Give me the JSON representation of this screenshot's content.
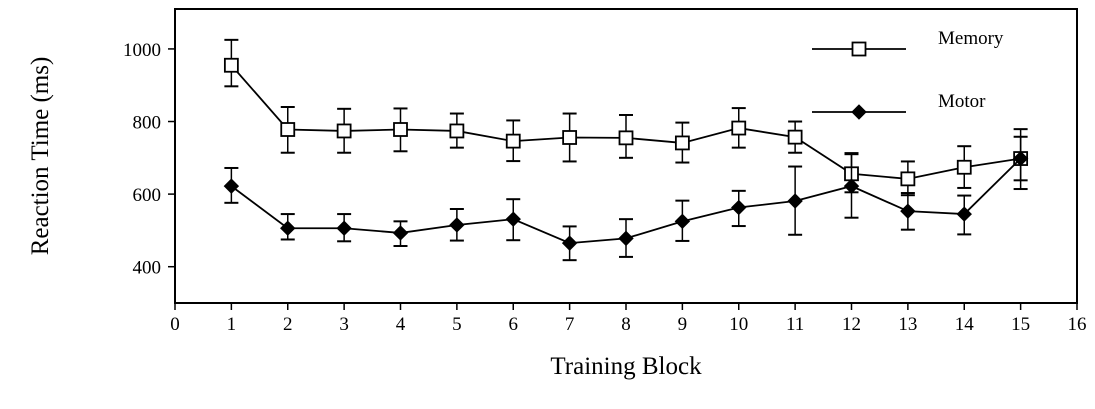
{
  "chart_data": {
    "type": "line",
    "title": "",
    "xlabel": "Training Block",
    "ylabel": "Reaction Time (ms)",
    "xlim": [
      0,
      16
    ],
    "ylim": [
      300,
      1110
    ],
    "x_ticks": [
      0,
      1,
      2,
      3,
      4,
      5,
      6,
      7,
      8,
      9,
      10,
      11,
      12,
      13,
      14,
      15,
      16
    ],
    "y_ticks": [
      400,
      600,
      800,
      1000
    ],
    "grid": false,
    "legend_position": "top-right",
    "x": [
      1,
      2,
      3,
      4,
      5,
      6,
      7,
      8,
      9,
      10,
      11,
      12,
      13,
      14,
      15
    ],
    "series": [
      {
        "name": "Memory",
        "marker": "open-square",
        "color": "#000000",
        "values": [
          955,
          778,
          774,
          778,
          774,
          746,
          756,
          755,
          741,
          782,
          757,
          656,
          642,
          674,
          698
        ],
        "error_upper": [
          1025,
          840,
          835,
          836,
          822,
          803,
          822,
          818,
          797,
          837,
          800,
          713,
          690,
          732,
          779
        ],
        "error_lower": [
          897,
          714,
          714,
          718,
          728,
          691,
          690,
          700,
          687,
          728,
          714,
          605,
          597,
          617,
          614
        ]
      },
      {
        "name": "Motor",
        "marker": "filled-diamond",
        "color": "#000000",
        "values": [
          622,
          506,
          506,
          493,
          515,
          531,
          465,
          478,
          525,
          563,
          581,
          622,
          553,
          545,
          698
        ],
        "error_upper": [
          672,
          545,
          545,
          525,
          559,
          586,
          511,
          531,
          582,
          609,
          676,
          710,
          603,
          596,
          758
        ],
        "error_lower": [
          576,
          475,
          470,
          457,
          472,
          473,
          418,
          427,
          471,
          512,
          488,
          535,
          502,
          489,
          638
        ]
      }
    ]
  }
}
